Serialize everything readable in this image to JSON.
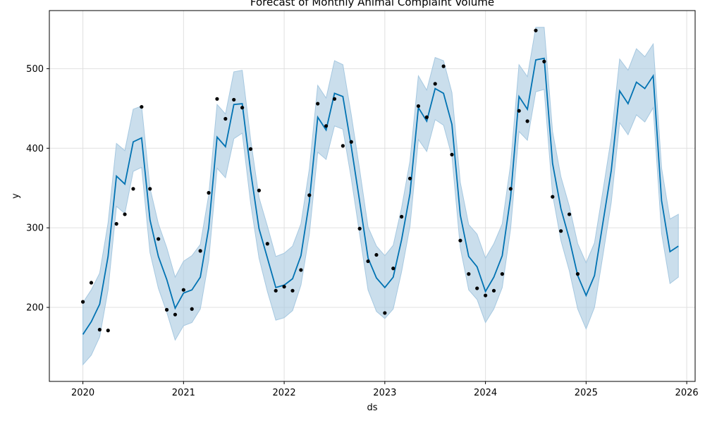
{
  "chart_data": {
    "type": "line",
    "title": "Forecast of Monthly Animal Complaint Volume",
    "xlabel": "ds",
    "ylabel": "y",
    "xlim": [
      "2019-09",
      "2026-02"
    ],
    "ylim": [
      107,
      573
    ],
    "grid": true,
    "x_ticks": [
      "2020",
      "2021",
      "2022",
      "2023",
      "2024",
      "2025",
      "2026"
    ],
    "y_ticks": [
      200,
      300,
      400,
      500
    ],
    "colors": {
      "forecast": "#0072b2",
      "interval": "#a6c8e0",
      "observed": "#000000"
    },
    "observed": {
      "x": [
        "2020-01",
        "2020-02",
        "2020-03",
        "2020-04",
        "2020-05",
        "2020-06",
        "2020-07",
        "2020-08",
        "2020-09",
        "2020-10",
        "2020-11",
        "2020-12",
        "2021-01",
        "2021-02",
        "2021-03",
        "2021-04",
        "2021-05",
        "2021-06",
        "2021-07",
        "2021-08",
        "2021-09",
        "2021-10",
        "2021-11",
        "2021-12",
        "2022-01",
        "2022-02",
        "2022-03",
        "2022-04",
        "2022-05",
        "2022-06",
        "2022-07",
        "2022-08",
        "2022-09",
        "2022-10",
        "2022-11",
        "2022-12",
        "2023-01",
        "2023-02",
        "2023-03",
        "2023-04",
        "2023-05",
        "2023-06",
        "2023-07",
        "2023-08",
        "2023-09",
        "2023-10",
        "2023-11",
        "2023-12",
        "2024-01",
        "2024-02",
        "2024-03",
        "2024-04",
        "2024-05",
        "2024-06",
        "2024-07",
        "2024-08",
        "2024-09",
        "2024-10",
        "2024-11",
        "2024-12"
      ],
      "y": [
        207,
        231,
        172,
        171,
        305,
        317,
        349,
        452,
        349,
        286,
        197,
        191,
        222,
        198,
        271,
        344,
        462,
        437,
        461,
        451,
        399,
        347,
        280,
        221,
        226,
        221,
        247,
        341,
        456,
        428,
        462,
        403,
        408,
        299,
        258,
        266,
        193,
        249,
        314,
        362,
        453,
        439,
        481,
        503,
        392,
        284,
        242,
        224,
        215,
        221,
        242,
        349,
        447,
        434,
        548,
        509,
        339,
        296,
        317,
        242
      ]
    },
    "forecast": {
      "x": [
        "2020-01",
        "2020-02",
        "2020-03",
        "2020-04",
        "2020-05",
        "2020-06",
        "2020-07",
        "2020-08",
        "2020-09",
        "2020-10",
        "2020-11",
        "2020-12",
        "2021-01",
        "2021-02",
        "2021-03",
        "2021-04",
        "2021-05",
        "2021-06",
        "2021-07",
        "2021-08",
        "2021-09",
        "2021-10",
        "2021-11",
        "2021-12",
        "2022-01",
        "2022-02",
        "2022-03",
        "2022-04",
        "2022-05",
        "2022-06",
        "2022-07",
        "2022-08",
        "2022-09",
        "2022-10",
        "2022-11",
        "2022-12",
        "2023-01",
        "2023-02",
        "2023-03",
        "2023-04",
        "2023-05",
        "2023-06",
        "2023-07",
        "2023-08",
        "2023-09",
        "2023-10",
        "2023-11",
        "2023-12",
        "2024-01",
        "2024-02",
        "2024-03",
        "2024-04",
        "2024-05",
        "2024-06",
        "2024-07",
        "2024-08",
        "2024-09",
        "2024-10",
        "2024-11",
        "2024-12",
        "2025-01",
        "2025-02",
        "2025-03",
        "2025-04",
        "2025-05",
        "2025-06",
        "2025-07",
        "2025-08",
        "2025-09",
        "2025-10",
        "2025-11",
        "2025-12"
      ],
      "yhat": [
        166,
        182,
        204,
        264,
        365,
        355,
        408,
        413,
        310,
        264,
        235,
        199,
        218,
        222,
        238,
        300,
        414,
        402,
        455,
        456,
        371,
        299,
        262,
        225,
        228,
        236,
        265,
        333,
        439,
        423,
        469,
        465,
        402,
        333,
        262,
        237,
        225,
        238,
        285,
        343,
        451,
        434,
        475,
        469,
        430,
        316,
        264,
        251,
        220,
        238,
        265,
        339,
        465,
        449,
        511,
        513,
        381,
        324,
        286,
        240,
        215,
        240,
        306,
        372,
        472,
        456,
        483,
        475,
        491,
        334,
        270,
        277
      ],
      "lower": [
        128,
        140,
        163,
        222,
        327,
        318,
        371,
        376,
        269,
        224,
        194,
        159,
        177,
        181,
        198,
        259,
        375,
        363,
        412,
        419,
        331,
        262,
        220,
        184,
        187,
        196,
        228,
        292,
        395,
        386,
        428,
        424,
        362,
        292,
        222,
        195,
        186,
        198,
        245,
        302,
        411,
        396,
        436,
        429,
        390,
        275,
        222,
        210,
        181,
        198,
        225,
        299,
        421,
        410,
        471,
        474,
        342,
        284,
        246,
        198,
        173,
        200,
        265,
        332,
        432,
        417,
        442,
        433,
        451,
        293,
        230,
        238
      ],
      "upper": [
        206,
        222,
        243,
        306,
        406,
        397,
        449,
        453,
        350,
        305,
        275,
        238,
        258,
        265,
        279,
        341,
        455,
        443,
        496,
        498,
        411,
        338,
        302,
        264,
        268,
        277,
        305,
        374,
        479,
        463,
        510,
        505,
        442,
        373,
        301,
        277,
        265,
        278,
        325,
        384,
        491,
        473,
        514,
        510,
        470,
        357,
        304,
        292,
        262,
        280,
        305,
        380,
        505,
        490,
        552,
        552,
        421,
        364,
        327,
        280,
        256,
        281,
        346,
        413,
        512,
        498,
        525,
        515,
        531,
        375,
        311,
        317
      ]
    }
  }
}
